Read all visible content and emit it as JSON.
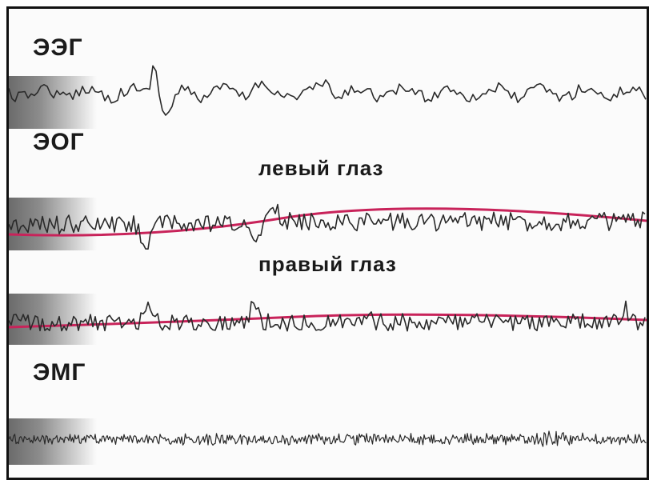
{
  "labels": {
    "eeg": "ЭЭГ",
    "eog": "ЭОГ",
    "left_eye": "левый глаз",
    "right_eye": "правый глаз",
    "emg": "ЭМГ"
  },
  "colors": {
    "trace": "#2a2a2a",
    "baseline": "#c8235a",
    "frame": "#111111"
  }
}
